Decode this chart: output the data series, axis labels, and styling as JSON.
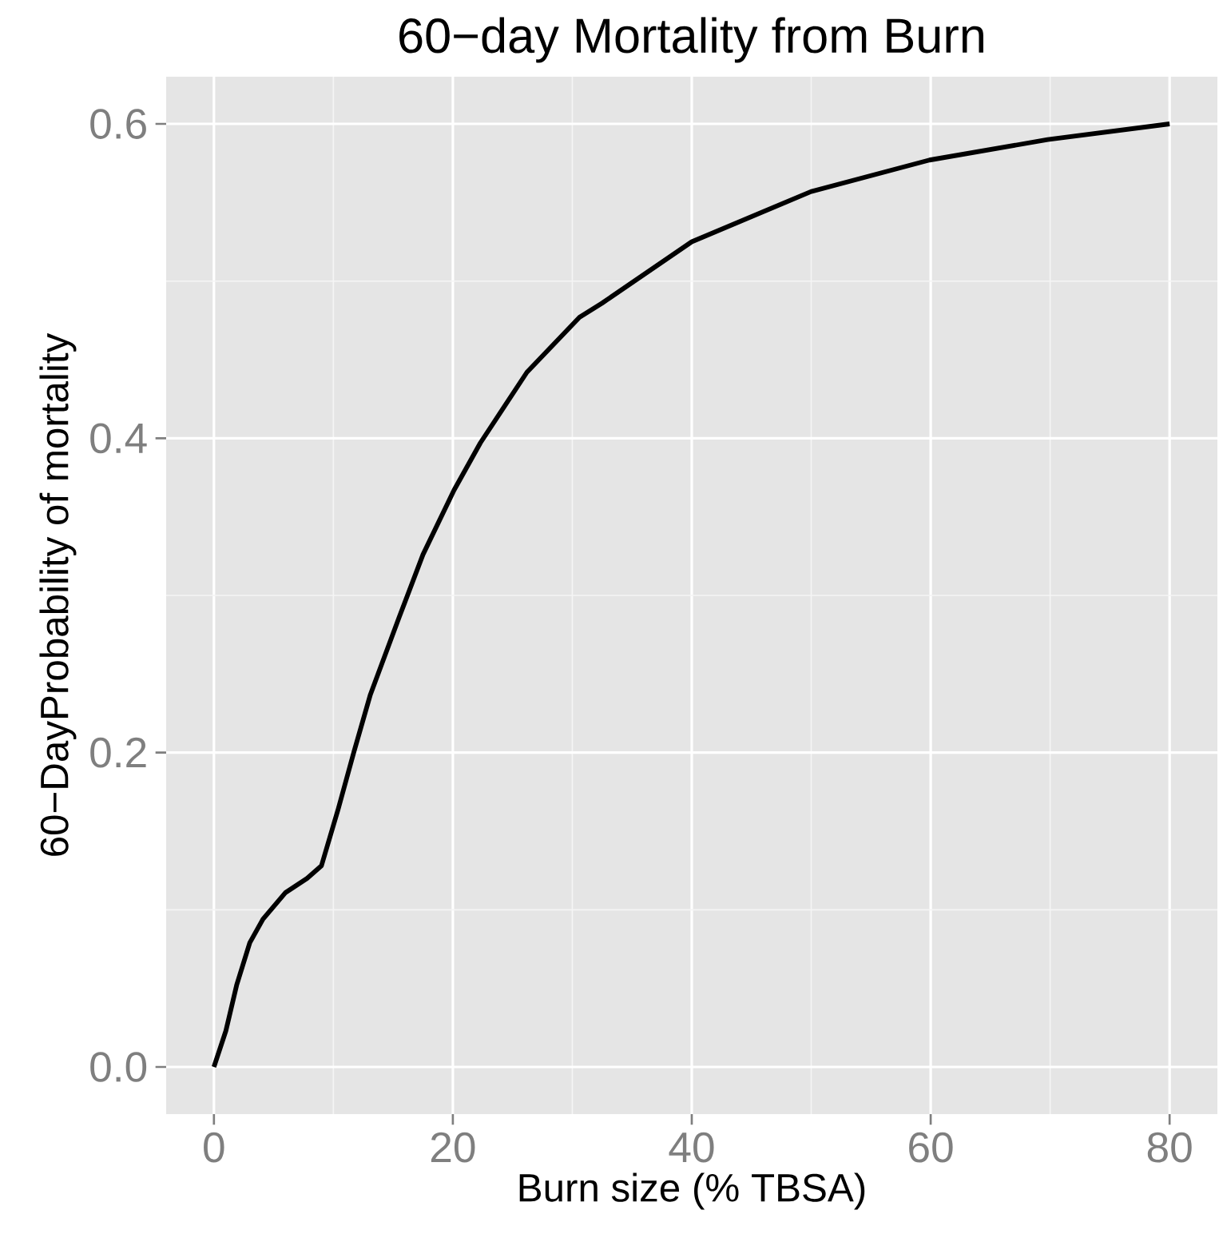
{
  "chart_data": {
    "type": "line",
    "title": "60−day Mortality from Burn",
    "xlabel": "Burn size (% TBSA)",
    "ylabel": "60−DayProbability of mortality",
    "x": [
      0,
      1,
      1.9,
      3,
      4.1,
      6,
      7.8,
      9,
      10.4,
      11.7,
      13.1,
      15.5,
      17.5,
      20.1,
      22.3,
      26.2,
      30.6,
      32.5,
      40,
      50,
      59.9,
      69.8,
      80
    ],
    "series": [
      {
        "color": "#000000",
        "values": [
          0,
          0.023,
          0.052,
          0.079,
          0.094,
          0.111,
          0.12,
          0.128,
          0.164,
          0.2,
          0.237,
          0.286,
          0.326,
          0.367,
          0.397,
          0.442,
          0.477,
          0.486,
          0.525,
          0.557,
          0.577,
          0.59,
          0.6
        ]
      }
    ],
    "xlim": [
      -4,
      84
    ],
    "ylim": [
      -0.03,
      0.63
    ],
    "xticks": [
      0,
      20,
      40,
      60,
      80
    ],
    "yticks": [
      {
        "value": 0,
        "label": "0.0"
      },
      0.2,
      0.4,
      0.6
    ],
    "grid": true
  }
}
